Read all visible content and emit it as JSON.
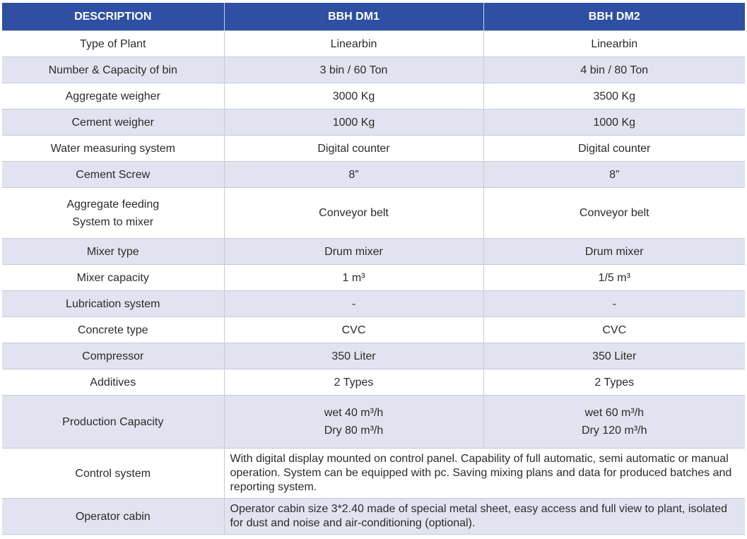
{
  "header": {
    "description": "DESCRIPTION",
    "model1": "BBH DM1",
    "model2": "BBH DM2"
  },
  "rows": [
    {
      "label": "Type of Plant",
      "dm1": "Linearbin",
      "dm2": "Linearbin"
    },
    {
      "label": "Number & Capacity of bin",
      "dm1": "3 bin / 60 Ton",
      "dm2": "4 bin / 80 Ton"
    },
    {
      "label": "Aggregate weigher",
      "dm1": "3000 Kg",
      "dm2": "3500 Kg"
    },
    {
      "label": "Cement weigher",
      "dm1": "1000 Kg",
      "dm2": "1000 Kg"
    },
    {
      "label": "Water measuring system",
      "dm1": "Digital counter",
      "dm2": "Digital counter"
    },
    {
      "label": "Cement Screw",
      "dm1": "8”",
      "dm2": "8”"
    },
    {
      "label_line1": "Aggregate feeding",
      "label_line2": "System to mixer",
      "dm1": "Conveyor belt",
      "dm2": "Conveyor belt"
    },
    {
      "label": "Mixer type",
      "dm1": "Drum mixer",
      "dm2": "Drum mixer"
    },
    {
      "label": "Mixer capacity",
      "dm1": "1 m³",
      "dm2": "1/5 m³"
    },
    {
      "label": "Lubrication system",
      "dm1": "-",
      "dm2": "-"
    },
    {
      "label": "Concrete type",
      "dm1": "CVC",
      "dm2": "CVC"
    },
    {
      "label": "Compressor",
      "dm1": "350 Liter",
      "dm2": "350 Liter"
    },
    {
      "label": "Additives",
      "dm1": "2 Types",
      "dm2": "2 Types"
    },
    {
      "label": "Production Capacity",
      "dm1_line1": "wet  40 m³/h",
      "dm1_line2": "Dry  80 m³/h",
      "dm2_line1": "wet  60 m³/h",
      "dm2_line2": "Dry  120 m³/h"
    },
    {
      "label": "Control system",
      "text": "With digital display mounted on control panel. Capability of full automatic, semi automatic or manual operation. System can be equipped with pc. Saving mixing plans and data for produced batches and reporting system."
    },
    {
      "label": "Operator cabin",
      "text": "Operator cabin size 3*2.40 made of special metal sheet, easy access and full view to plant, isolated for dust and noise and air-conditioning (optional)."
    }
  ]
}
